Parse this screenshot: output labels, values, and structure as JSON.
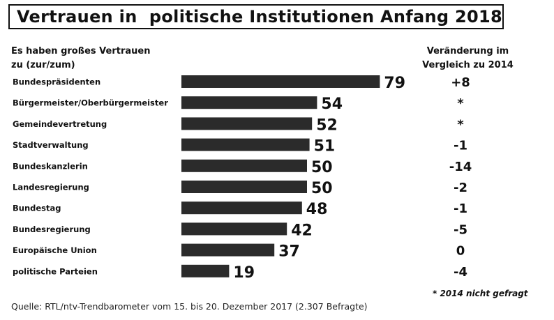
{
  "chart_data": {
    "type": "bar",
    "orientation": "horizontal",
    "title": "Vertrauen in  politische Institutionen Anfang 2018",
    "subtitle_lines": [
      "Es haben großes Vertrauen",
      "zu (zur/zum)"
    ],
    "change_header_lines": [
      "Veränderung im",
      "Vergleich zu 2014"
    ],
    "categories": [
      "Bundespräsidenten",
      "Bürgermeister/Oberbürgermeister",
      "Gemeindevertretung",
      "Stadtverwaltung",
      "Bundeskanzlerin",
      "Landesregierung",
      "Bundestag",
      "Bundesregierung",
      "Europäische Union",
      "politische Parteien"
    ],
    "values": [
      79,
      54,
      52,
      51,
      50,
      50,
      48,
      42,
      37,
      19
    ],
    "changes": [
      "+8",
      "*",
      "*",
      "-1",
      "-14",
      "-2",
      "-1",
      "-5",
      "0",
      "-4"
    ],
    "bar_color": "#2b2b2b",
    "xlim": [
      0,
      100
    ],
    "grid": false,
    "footnote": "* 2014 nicht gefragt",
    "source": "Quelle: RTL/ntv-Trendbarometer vom 15. bis 20. Dezember 2017 (2.307 Befragte)"
  }
}
